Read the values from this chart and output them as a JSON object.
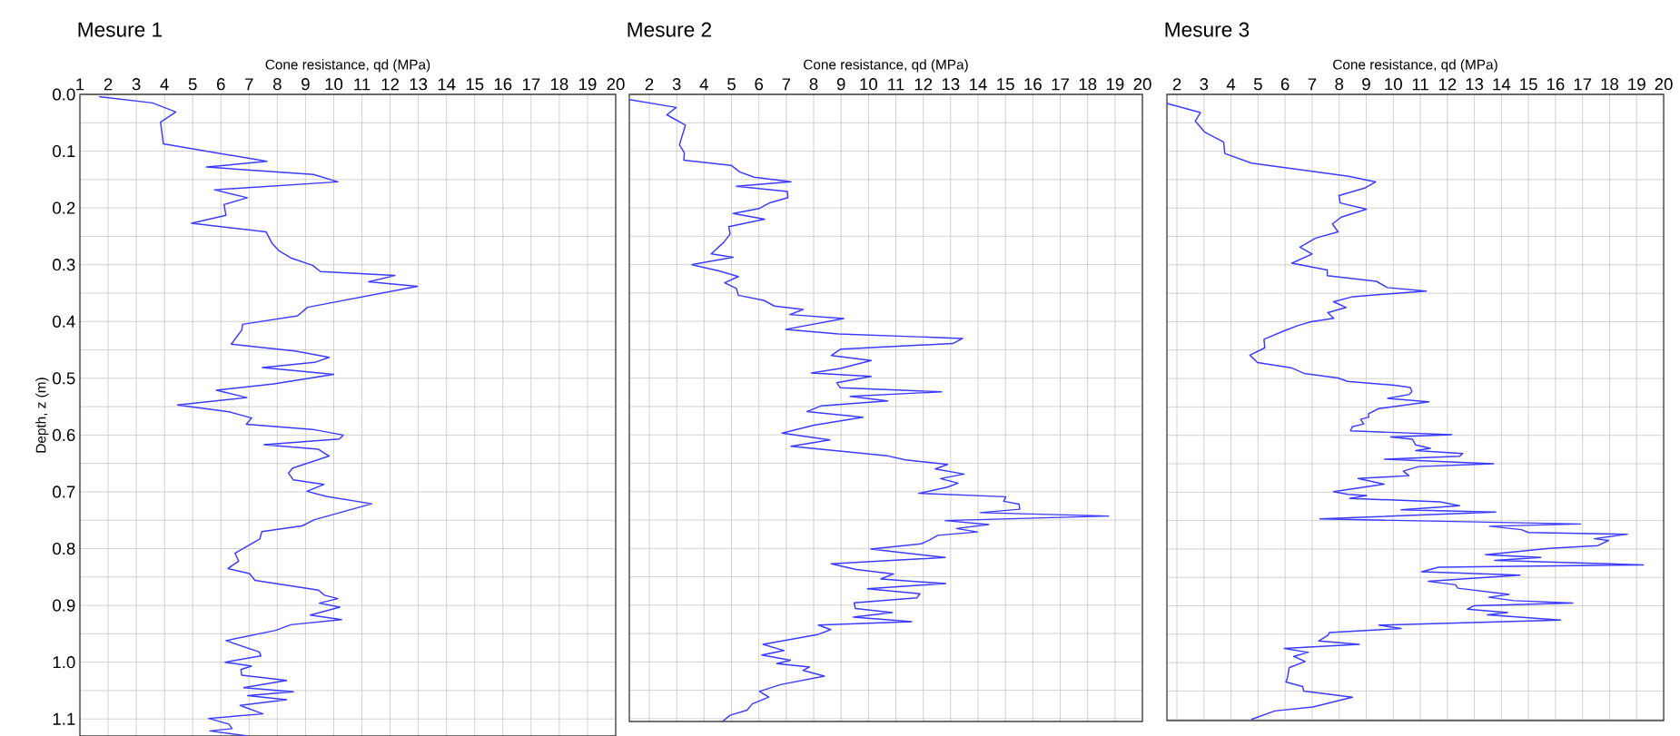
{
  "chart_data": [
    {
      "type": "line",
      "title": "Mesure 1",
      "xlabel": "Cone resistance, qd (MPa)",
      "ylabel": "Depth, z (m)",
      "xlim": [
        1,
        20
      ],
      "xticks": [
        1,
        2,
        3,
        4,
        5,
        6,
        7,
        8,
        9,
        10,
        11,
        12,
        13,
        14,
        15,
        16,
        17,
        18,
        19,
        20
      ],
      "ylim": [
        1.13,
        0
      ],
      "yticks": [
        {
          "value": 0,
          "label": "0.0"
        },
        0.1,
        0.2,
        0.3,
        0.4,
        0.5,
        0.6,
        0.7,
        0.8,
        0.9,
        {
          "value": 1,
          "label": "1.0"
        },
        1.1
      ],
      "grid": true,
      "series": [
        {
          "color": "#3b3bff",
          "x": [
            1.68,
            3.57,
            4.4,
            3.86,
            3.96,
            7.63,
            5.49,
            9.28,
            10.15,
            5.77,
            6.94,
            6.11,
            6.18,
            4.96,
            7.6,
            7.81,
            8.05,
            8.48,
            9.25,
            9.53,
            12.17,
            11.24,
            12.97,
            9.07,
            8.72,
            6.77,
            6.74,
            6.37,
            8.62,
            9.84,
            9.32,
            7.47,
            10.0,
            7.88,
            5.84,
            6.92,
            4.46,
            6.29,
            7.09,
            6.9,
            9.25,
            10.34,
            10.2,
            7.53,
            9.46,
            9.84,
            8.55,
            8.4,
            8.57,
            9.65,
            9.05,
            9.74,
            11.35,
            9.32,
            8.88,
            7.45,
            7.38,
            6.5,
            6.63,
            6.25,
            7.01,
            7.21,
            9.46,
            9.67,
            10.15,
            9.49,
            10.22,
            9.17,
            10.28,
            8.48,
            7.94,
            6.18,
            7.36,
            7.42,
            6.15,
            7.08,
            6.71,
            6.74,
            8.33,
            6.81,
            8.57,
            6.95,
            8.33,
            6.68,
            7.49,
            5.57,
            6.28,
            6.4,
            5.61,
            6.95
          ],
          "values": [
            0.004,
            0.015,
            0.031,
            0.049,
            0.087,
            0.118,
            0.128,
            0.141,
            0.154,
            0.168,
            0.182,
            0.194,
            0.213,
            0.227,
            0.242,
            0.262,
            0.275,
            0.288,
            0.301,
            0.312,
            0.319,
            0.33,
            0.338,
            0.375,
            0.39,
            0.405,
            0.415,
            0.44,
            0.452,
            0.463,
            0.472,
            0.481,
            0.493,
            0.51,
            0.521,
            0.534,
            0.547,
            0.559,
            0.57,
            0.581,
            0.59,
            0.6,
            0.607,
            0.617,
            0.625,
            0.637,
            0.658,
            0.667,
            0.679,
            0.687,
            0.699,
            0.708,
            0.721,
            0.749,
            0.76,
            0.77,
            0.783,
            0.808,
            0.822,
            0.835,
            0.844,
            0.856,
            0.873,
            0.882,
            0.888,
            0.896,
            0.903,
            0.917,
            0.925,
            0.934,
            0.944,
            0.962,
            0.982,
            0.989,
            1.0,
            1.007,
            1.013,
            1.023,
            1.032,
            1.045,
            1.052,
            1.059,
            1.066,
            1.076,
            1.091,
            1.099,
            1.109,
            1.117,
            1.121,
            1.13
          ]
        }
      ]
    },
    {
      "type": "line",
      "title": "Mesure 2",
      "xlabel": "Cone resistance, qd (MPa)",
      "xlim": [
        1.27,
        20
      ],
      "xticks": [
        2,
        3,
        4,
        5,
        6,
        7,
        8,
        9,
        10,
        11,
        12,
        13,
        14,
        15,
        16,
        17,
        18,
        19,
        20
      ],
      "ylim": [
        1.105,
        0
      ],
      "yticks": [
        0,
        0.1,
        0.2,
        0.3,
        0.4,
        0.5,
        0.6,
        0.7,
        0.8,
        0.9,
        1,
        1.1
      ],
      "tick_labels": "x",
      "grid": true,
      "series": [
        {
          "color": "#3b3bff",
          "x": [
            1.27,
            2.98,
            2.64,
            3.32,
            3.1,
            3.28,
            3.26,
            4.99,
            5.31,
            5.83,
            7.17,
            5.18,
            7.04,
            7.06,
            6.4,
            6.02,
            5.06,
            6.21,
            4.9,
            4.95,
            4.73,
            4.26,
            5.06,
            3.55,
            4.54,
            5.25,
            4.75,
            5.18,
            5.25,
            6.18,
            6.57,
            7.62,
            7.13,
            9.1,
            6.98,
            8.91,
            13.44,
            13.08,
            8.97,
            8.65,
            10.1,
            8.97,
            7.92,
            10.1,
            8.84,
            8.97,
            12.67,
            9.33,
            10.7,
            8.26,
            7.75,
            9.8,
            8.01,
            6.85,
            8.59,
            7.17,
            10.7,
            11.35,
            12.89,
            12.44,
            13.49,
            12.63,
            13.27,
            12.89,
            11.83,
            15.01,
            14.94,
            15.5,
            15.52,
            14.08,
            18.77,
            12.8,
            14.39,
            13.21,
            13.98,
            12.53,
            12.24,
            11.92,
            10.09,
            12.8,
            8.64,
            9.55,
            10.92,
            10.45,
            12.82,
            9.96,
            11.88,
            11.77,
            9.48,
            9.52,
            10.87,
            9.45,
            11.58,
            8.17,
            8.62,
            8.14,
            6.15,
            6.92,
            6.11,
            7.15,
            6.66,
            7.85,
            7.62,
            8.39,
            6.79,
            6.02,
            6.36,
            5.76,
            5.57,
            4.95,
            4.67
          ],
          "values": [
            0.009,
            0.023,
            0.036,
            0.054,
            0.089,
            0.103,
            0.116,
            0.125,
            0.137,
            0.146,
            0.154,
            0.162,
            0.171,
            0.182,
            0.191,
            0.201,
            0.21,
            0.22,
            0.233,
            0.246,
            0.26,
            0.281,
            0.287,
            0.3,
            0.311,
            0.321,
            0.332,
            0.342,
            0.354,
            0.363,
            0.373,
            0.379,
            0.388,
            0.395,
            0.414,
            0.422,
            0.43,
            0.439,
            0.449,
            0.46,
            0.469,
            0.483,
            0.491,
            0.497,
            0.508,
            0.517,
            0.524,
            0.532,
            0.54,
            0.549,
            0.559,
            0.569,
            0.583,
            0.597,
            0.609,
            0.62,
            0.637,
            0.644,
            0.652,
            0.66,
            0.669,
            0.677,
            0.685,
            0.692,
            0.703,
            0.709,
            0.717,
            0.722,
            0.731,
            0.737,
            0.743,
            0.751,
            0.758,
            0.765,
            0.771,
            0.777,
            0.785,
            0.792,
            0.801,
            0.816,
            0.827,
            0.837,
            0.845,
            0.854,
            0.862,
            0.871,
            0.88,
            0.887,
            0.896,
            0.906,
            0.913,
            0.921,
            0.929,
            0.935,
            0.943,
            0.952,
            0.969,
            0.98,
            0.988,
            0.997,
            1.003,
            1.009,
            1.015,
            1.025,
            1.04,
            1.052,
            1.062,
            1.074,
            1.085,
            1.094,
            1.105
          ]
        }
      ]
    },
    {
      "type": "line",
      "title": "Mesure 3",
      "xlabel": "Cone resistance, qd (MPa)",
      "xlim": [
        1.63,
        20
      ],
      "xticks": [
        2,
        3,
        4,
        5,
        6,
        7,
        8,
        9,
        10,
        11,
        12,
        13,
        14,
        15,
        16,
        17,
        18,
        19,
        20
      ],
      "ylim": [
        1.102,
        0
      ],
      "yticks": [
        0,
        0.1,
        0.2,
        0.3,
        0.4,
        0.5,
        0.6,
        0.7,
        0.8,
        0.9,
        1,
        1.1
      ],
      "tick_labels": "x",
      "grid": true,
      "series": [
        {
          "color": "#3b3bff",
          "x": [
            1.63,
            2.87,
            2.68,
            3.02,
            3.73,
            3.77,
            4.76,
            8.35,
            9.35,
            8.94,
            7.99,
            8.04,
            9.01,
            8.08,
            7.75,
            7.96,
            7.13,
            6.55,
            7.0,
            6.25,
            7.56,
            7.56,
            9.38,
            9.78,
            11.22,
            8.51,
            7.79,
            8.26,
            7.58,
            7.8,
            6.96,
            6.46,
            5.97,
            5.22,
            5.25,
            4.7,
            4.98,
            6.22,
            6.7,
            7.96,
            8.31,
            10.05,
            10.63,
            10.69,
            10.59,
            9.79,
            11.32,
            9.46,
            9.09,
            9.09,
            8.79,
            8.91,
            8.48,
            8.42,
            12.16,
            9.9,
            10.71,
            10.83,
            11.37,
            10.83,
            12.57,
            12.45,
            9.68,
            13.71,
            10.93,
            10.37,
            10.58,
            8.7,
            9.66,
            7.79,
            8.33,
            9.01,
            8.39,
            11.74,
            12.45,
            10.29,
            13.79,
            7.29,
            16.93,
            13.56,
            14.74,
            15.0,
            18.66,
            17.44,
            17.96,
            17.57,
            15.77,
            13.41,
            15.46,
            13.75,
            19.25,
            11.68,
            11.05,
            14.69,
            11.3,
            12.3,
            12.39,
            14.28,
            13.54,
            14.47,
            16.64,
            12.97,
            12.74,
            14.23,
            13.48,
            16.19,
            9.47,
            10.29,
            7.64,
            7.58,
            7.24,
            8.74,
            5.97,
            6.86,
            6.32,
            6.74,
            6.15,
            6.09,
            6.03,
            6.65,
            6.69,
            8.49,
            7.03,
            5.62,
            4.75
          ],
          "values": [
            0.016,
            0.032,
            0.047,
            0.066,
            0.084,
            0.104,
            0.121,
            0.144,
            0.154,
            0.165,
            0.178,
            0.191,
            0.202,
            0.216,
            0.228,
            0.242,
            0.253,
            0.269,
            0.281,
            0.297,
            0.309,
            0.319,
            0.329,
            0.34,
            0.346,
            0.356,
            0.365,
            0.375,
            0.384,
            0.394,
            0.4,
            0.407,
            0.416,
            0.431,
            0.446,
            0.459,
            0.472,
            0.481,
            0.491,
            0.499,
            0.505,
            0.512,
            0.516,
            0.523,
            0.528,
            0.535,
            0.541,
            0.553,
            0.562,
            0.568,
            0.572,
            0.58,
            0.585,
            0.592,
            0.599,
            0.603,
            0.607,
            0.617,
            0.623,
            0.627,
            0.632,
            0.637,
            0.642,
            0.65,
            0.655,
            0.663,
            0.671,
            0.676,
            0.686,
            0.699,
            0.704,
            0.706,
            0.711,
            0.717,
            0.724,
            0.731,
            0.735,
            0.747,
            0.756,
            0.76,
            0.766,
            0.771,
            0.774,
            0.782,
            0.785,
            0.794,
            0.799,
            0.81,
            0.815,
            0.82,
            0.828,
            0.832,
            0.84,
            0.846,
            0.857,
            0.863,
            0.869,
            0.88,
            0.885,
            0.891,
            0.895,
            0.9,
            0.906,
            0.912,
            0.916,
            0.925,
            0.934,
            0.94,
            0.947,
            0.952,
            0.962,
            0.968,
            0.975,
            0.982,
            0.989,
            0.998,
            1.009,
            1.026,
            1.034,
            1.042,
            1.05,
            1.061,
            1.078,
            1.085,
            1.1
          ]
        }
      ]
    }
  ]
}
